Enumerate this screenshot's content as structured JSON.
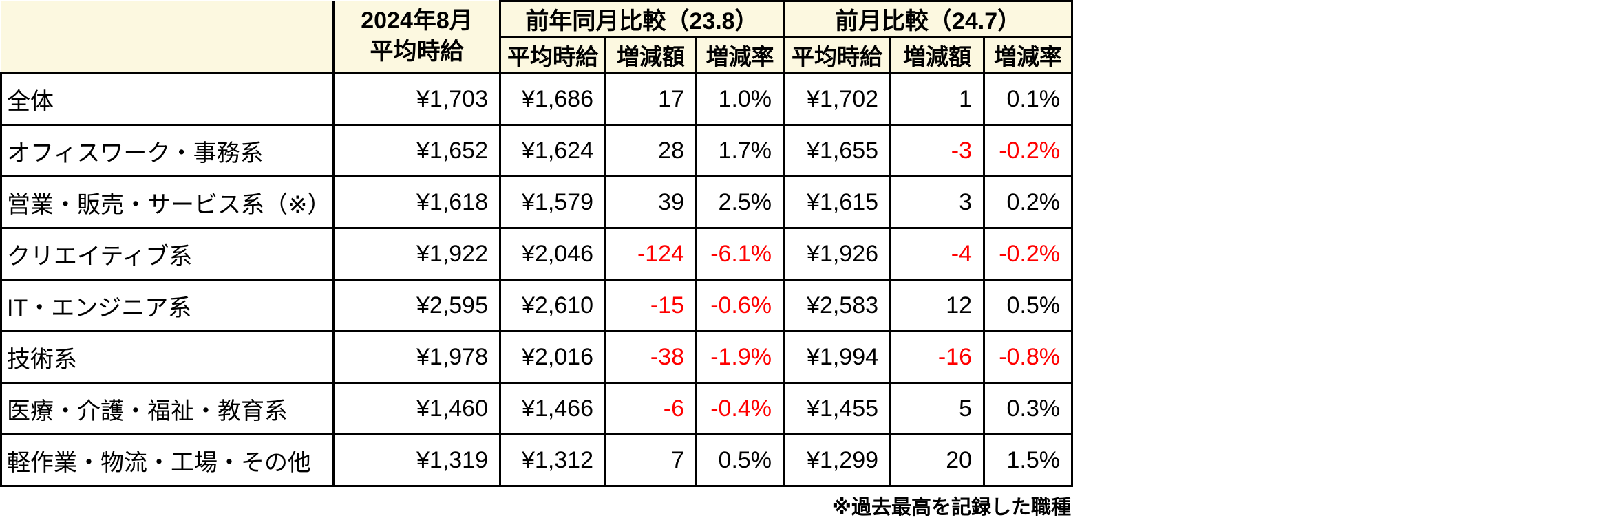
{
  "chart_data": {
    "type": "table",
    "header": {
      "corner_label": "",
      "month_col": {
        "line1": "2024年8月",
        "line2": "平均時給"
      },
      "groups": [
        {
          "label": "前年同月比較（23.8）",
          "subcols": [
            "平均時給",
            "増減額",
            "増減率"
          ]
        },
        {
          "label": "前月比較（24.7）",
          "subcols": [
            "平均時給",
            "増減額",
            "増減率"
          ]
        }
      ]
    },
    "rows": [
      {
        "category": "全体",
        "values": [
          "¥1,703",
          "¥1,686",
          "17",
          "1.0%",
          "¥1,702",
          "1",
          "0.1%"
        ]
      },
      {
        "category": "オフィスワーク・事務系",
        "values": [
          "¥1,652",
          "¥1,624",
          "28",
          "1.7%",
          "¥1,655",
          "-3",
          "-0.2%"
        ]
      },
      {
        "category": "営業・販売・サービス系（※）",
        "values": [
          "¥1,618",
          "¥1,579",
          "39",
          "2.5%",
          "¥1,615",
          "3",
          "0.2%"
        ]
      },
      {
        "category": "クリエイティブ系",
        "values": [
          "¥1,922",
          "¥2,046",
          "-124",
          "-6.1%",
          "¥1,926",
          "-4",
          "-0.2%"
        ]
      },
      {
        "category": "IT・エンジニア系",
        "values": [
          "¥2,595",
          "¥2,610",
          "-15",
          "-0.6%",
          "¥2,583",
          "12",
          "0.5%"
        ]
      },
      {
        "category": "技術系",
        "values": [
          "¥1,978",
          "¥2,016",
          "-38",
          "-1.9%",
          "¥1,994",
          "-16",
          "-0.8%"
        ]
      },
      {
        "category": "医療・介護・福祉・教育系",
        "values": [
          "¥1,460",
          "¥1,466",
          "-6",
          "-0.4%",
          "¥1,455",
          "5",
          "0.3%"
        ]
      },
      {
        "category": "軽作業・物流・工場・その他",
        "values": [
          "¥1,319",
          "¥1,312",
          "7",
          "0.5%",
          "¥1,299",
          "20",
          "1.5%"
        ]
      }
    ],
    "footnote": "※過去最高を記録した職種"
  },
  "colors": {
    "header_bg": "#FCF8E0",
    "negative_text": "#FF0000",
    "border": "#000000",
    "background": "#FFFFFF"
  }
}
